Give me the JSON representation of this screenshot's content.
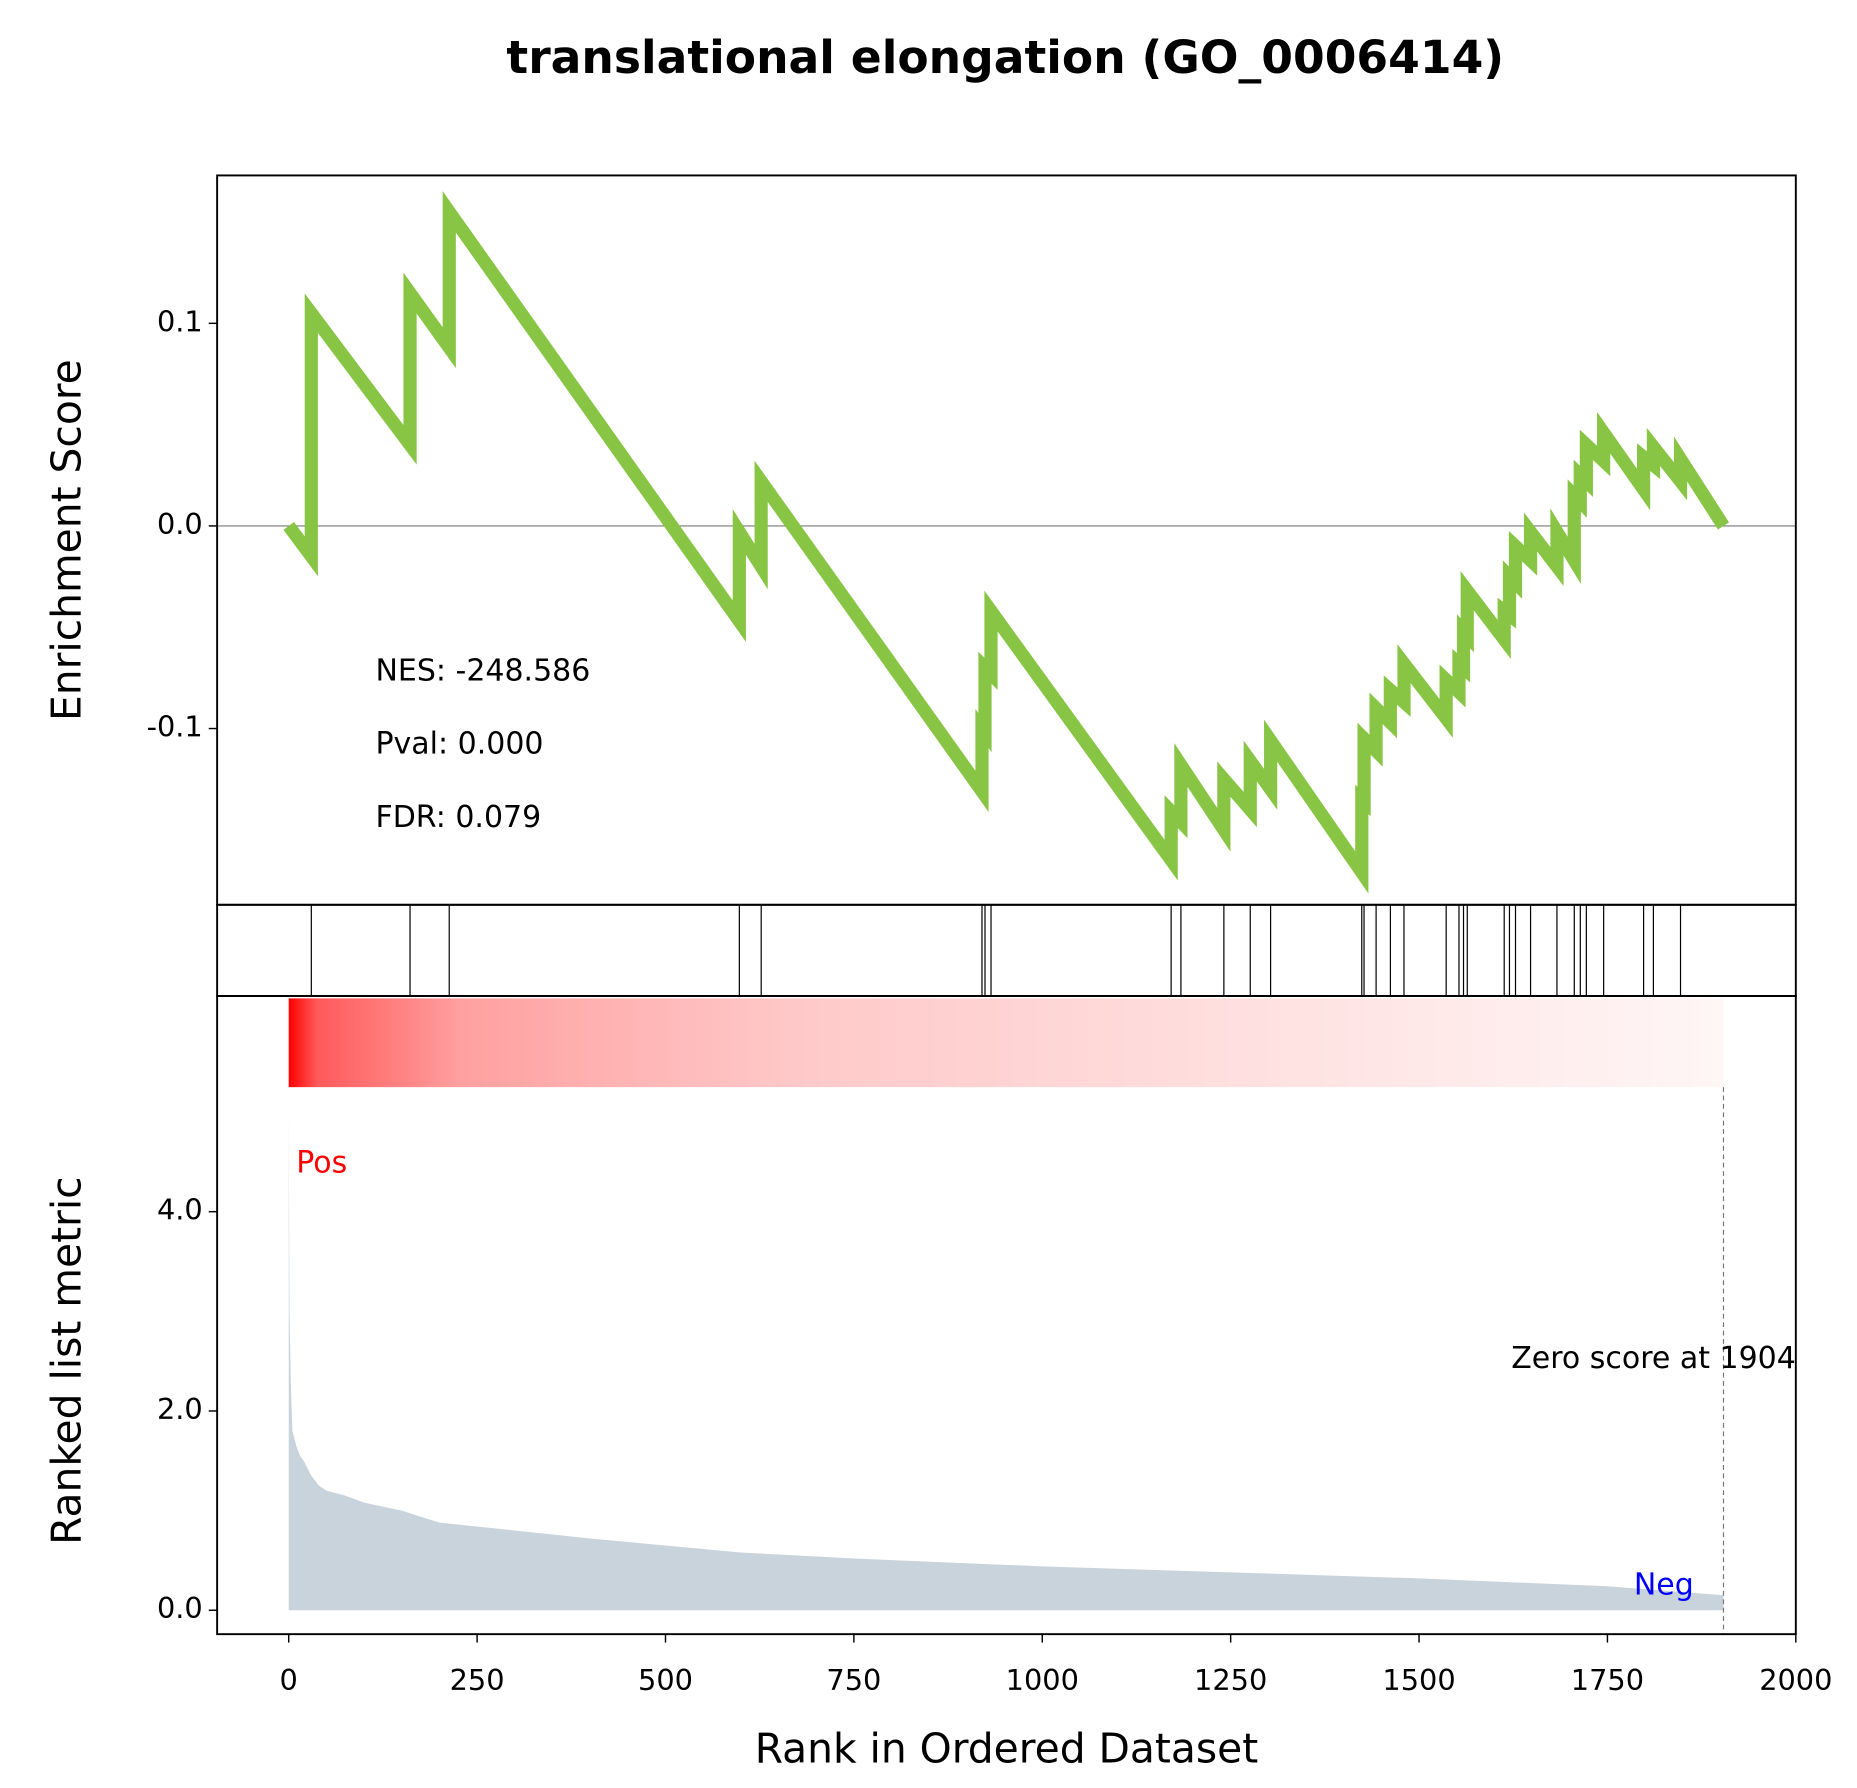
{
  "chart_data": [
    {
      "type": "line",
      "title": "translational elongation (GO_0006414)",
      "ylabel": "Enrichment Score",
      "xlim": [
        -95,
        2000
      ],
      "ylim": [
        -0.187,
        0.173
      ],
      "yticks": [
        -0.1,
        {
          "value": 0,
          "label": "0.0"
        },
        0.1
      ],
      "x": [
        0,
        30,
        30,
        161,
        161,
        213,
        213,
        598,
        598,
        627,
        627,
        920,
        920,
        924,
        924,
        932,
        932,
        1171,
        1171,
        1184,
        1184,
        1241,
        1241,
        1276,
        1276,
        1303,
        1303,
        1424,
        1424,
        1427,
        1427,
        1443,
        1443,
        1462,
        1462,
        1480,
        1480,
        1536,
        1536,
        1553,
        1553,
        1559,
        1559,
        1564,
        1564,
        1613,
        1613,
        1620,
        1620,
        1628,
        1628,
        1648,
        1648,
        1683,
        1683,
        1706,
        1706,
        1714,
        1714,
        1722,
        1722,
        1745,
        1745,
        1798,
        1798,
        1811,
        1811,
        1847,
        1847,
        1904
      ],
      "series": [
        {
          "color": "#88c544",
          "values": [
            0.0,
            -0.015,
            0.105,
            0.04,
            0.115,
            0.088,
            0.155,
            -0.047,
            -0.003,
            -0.02,
            0.022,
            -0.131,
            -0.1,
            -0.102,
            -0.07,
            -0.073,
            -0.042,
            -0.165,
            -0.141,
            -0.146,
            -0.118,
            -0.15,
            -0.125,
            -0.14,
            -0.116,
            -0.13,
            -0.106,
            -0.171,
            -0.135,
            -0.136,
            -0.105,
            -0.111,
            -0.09,
            -0.097,
            -0.081,
            -0.087,
            -0.068,
            -0.095,
            -0.076,
            -0.082,
            -0.068,
            -0.07,
            -0.052,
            -0.054,
            -0.032,
            -0.056,
            -0.042,
            -0.044,
            -0.025,
            -0.028,
            -0.01,
            -0.017,
            -0.003,
            -0.02,
            -0.003,
            -0.017,
            0.015,
            0.012,
            0.025,
            0.022,
            0.04,
            0.032,
            0.046,
            0.018,
            0.034,
            0.03,
            0.039,
            0.022,
            0.033,
            0.0
          ]
        }
      ],
      "annotations": [
        "NES: -248.586",
        "Pval: 0.000",
        "FDR: 0.079"
      ]
    },
    {
      "type": "rug",
      "xlim": [
        -95,
        2000
      ],
      "x": [
        30,
        161,
        213,
        598,
        627,
        920,
        924,
        932,
        1171,
        1184,
        1241,
        1276,
        1303,
        1424,
        1427,
        1443,
        1462,
        1480,
        1536,
        1553,
        1559,
        1564,
        1613,
        1620,
        1628,
        1648,
        1683,
        1706,
        1714,
        1722,
        1745,
        1798,
        1811,
        1847
      ]
    },
    {
      "type": "area",
      "ylabel": "Ranked list metric",
      "xlabel": "Rank in Ordered Dataset",
      "color": "#c9d3dc",
      "xlim": [
        -95,
        2000
      ],
      "ylim": [
        -0.24,
        5.25
      ],
      "xticks": [
        0,
        250,
        500,
        750,
        1000,
        1250,
        1500,
        1750,
        2000
      ],
      "yticks": [
        {
          "value": 0,
          "label": "0.0"
        },
        {
          "value": 2,
          "label": "2.0"
        },
        {
          "value": 4,
          "label": "4.0"
        }
      ],
      "x": [
        0,
        1,
        3,
        5,
        10,
        15,
        20,
        30,
        40,
        50,
        75,
        100,
        150,
        200,
        300,
        400,
        500,
        600,
        750,
        1000,
        1250,
        1500,
        1750,
        1904
      ],
      "values": [
        5.0,
        3.0,
        2.2,
        1.8,
        1.65,
        1.55,
        1.5,
        1.35,
        1.25,
        1.2,
        1.15,
        1.08,
        1.0,
        0.88,
        0.8,
        0.72,
        0.65,
        0.58,
        0.52,
        0.44,
        0.38,
        0.32,
        0.24,
        0.15
      ],
      "zero_score": 1904,
      "annotations": [
        "Pos",
        "Neg",
        "Zero score at 1904"
      ]
    }
  ]
}
